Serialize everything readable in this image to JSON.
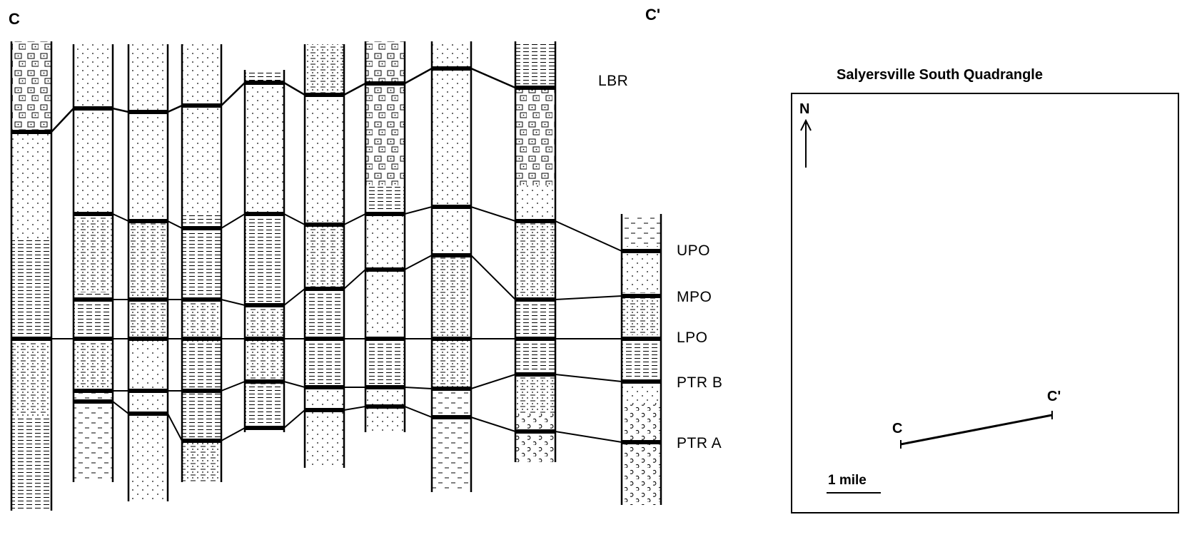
{
  "section": {
    "start_label": "C",
    "end_label": "C'"
  },
  "units": [
    {
      "id": "lbr",
      "label": "LBR"
    },
    {
      "id": "upo",
      "label": "UPO"
    },
    {
      "id": "mpo",
      "label": "MPO"
    },
    {
      "id": "lpo",
      "label": "LPO"
    },
    {
      "id": "ptrb",
      "label": "PTR B"
    },
    {
      "id": "ptra",
      "label": "PTR A"
    }
  ],
  "map": {
    "title": "Salyersville South Quadrangle",
    "north_label": "N",
    "line_start": "C",
    "line_end": "C'",
    "scale_label": "1 mile"
  },
  "colors": {
    "ink": "#000000",
    "paper": "#ffffff"
  }
}
